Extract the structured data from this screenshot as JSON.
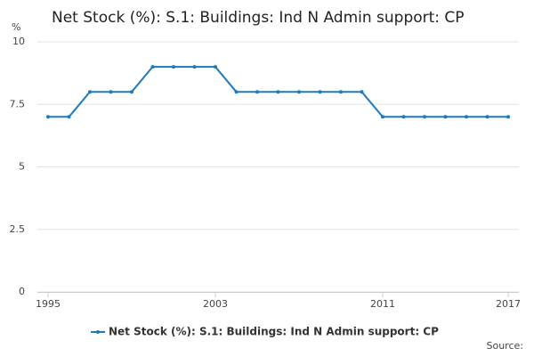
{
  "chart_data": {
    "type": "line",
    "title": "Net Stock (%): S.1: Buildings: Ind N Admin support: CP",
    "y_label": "%",
    "source": "Source:",
    "x": [
      1995,
      1996,
      1997,
      1998,
      1999,
      2000,
      2001,
      2002,
      2003,
      2004,
      2005,
      2006,
      2007,
      2008,
      2009,
      2010,
      2011,
      2012,
      2013,
      2014,
      2015,
      2016,
      2017
    ],
    "series": [
      {
        "name": "Net Stock (%): S.1: Buildings: Ind N Admin support: CP",
        "color": "#1f7ab8",
        "values": [
          7,
          7,
          8,
          8,
          8,
          9,
          9,
          9,
          9,
          8,
          8,
          8,
          8,
          8,
          8,
          8,
          7,
          7,
          7,
          7,
          7,
          7,
          7
        ]
      }
    ],
    "xlim": [
      1995,
      2017
    ],
    "xticks": [
      1995,
      2003,
      2011,
      2017
    ],
    "ylim": [
      0,
      10
    ],
    "yticks": [
      0,
      2.5,
      5,
      7.5,
      10
    ],
    "grid": true,
    "legend": "bottom"
  }
}
